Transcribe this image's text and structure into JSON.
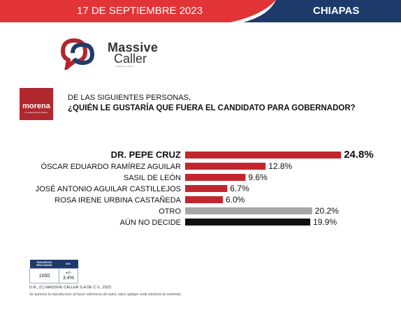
{
  "header": {
    "date": "17 DE SEPTIEMBRE 2023",
    "region": "CHIAPAS",
    "colors": {
      "red": "#e23437",
      "navy": "#1e3a6b"
    }
  },
  "brand": {
    "line1": "Massive",
    "line2": "Caller",
    "tagline": "medición de opinión"
  },
  "party": {
    "name": "morena",
    "tagline": "La esperanza de México"
  },
  "question": {
    "line1": "DE LAS SIGUIENTES PERSONAS,",
    "line2": "¿QUIÉN LE GUSTARÍA QUE FUERA EL CANDIDATO PARA GOBERNADOR?"
  },
  "chart_data": {
    "type": "bar",
    "orientation": "horizontal",
    "categories": [
      "DR. PEPE CRUZ",
      "ÓSCAR EDUARDO RAMÍREZ AGUILAR",
      "SASIL DE LEÓN",
      "JOSÉ ANTONIO AGUILAR CASTILLEJOS",
      "ROSA IRENE URBINA CASTAÑEDA",
      "OTRO",
      "AÚN NO DECIDE"
    ],
    "values": [
      24.8,
      12.8,
      9.6,
      6.7,
      6.0,
      20.2,
      19.9
    ],
    "labels": [
      "24.8%",
      "12.8%",
      "9.6%",
      "6.7%",
      "6.0%",
      "20.2%",
      "19.9%"
    ],
    "colors": [
      "#c1272d",
      "#c1272d",
      "#c1272d",
      "#c1272d",
      "#c1272d",
      "#a6a6a6",
      "#111111"
    ],
    "highlight": 0,
    "xlim": [
      0,
      25
    ]
  },
  "table": {
    "headers": [
      "ENCUESTAS REALIZADAS",
      "M.E."
    ],
    "row": [
      "1000",
      "+/- 3.4%"
    ]
  },
  "footer": {
    "copyright": "D.R., (C) MASSIVE CALLER S.A DE C.V., 2023",
    "note": "Se autoriza la reproducción al hacer referencia del autor, salvo aplique veda electoral al contenido."
  }
}
